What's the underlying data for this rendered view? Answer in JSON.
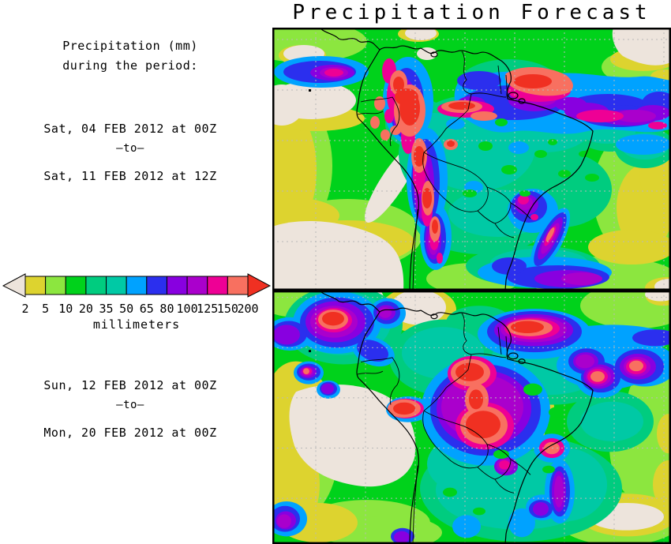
{
  "title": "Precipitation Forecast",
  "sidebar": {
    "header_line1": "Precipitation (mm)",
    "header_line2": "during the period:",
    "period1": {
      "start": "Sat, 04 FEB 2012 at 00Z",
      "separator": "–to–",
      "end": "Sat, 11 FEB 2012 at 12Z"
    },
    "period2": {
      "start": "Sun, 12 FEB 2012 at 00Z",
      "separator": "–to–",
      "end": "Mon, 20 FEB 2012 at 00Z"
    }
  },
  "legend": {
    "values": [
      "2",
      "5",
      "10",
      "20",
      "35",
      "50",
      "65",
      "80",
      "100",
      "125",
      "150",
      "200"
    ],
    "unit_label": "millimeters",
    "palette": [
      "#ede4dc",
      "#ddd32f",
      "#8ce63f",
      "#00d21b",
      "#00cc7f",
      "#00c9a5",
      "#00a2ff",
      "#2b2fee",
      "#8800e0",
      "#aa00cc",
      "#ee0095",
      "#f87060",
      "#f03022"
    ],
    "palette_meaning": "below-2mm, 2-5, 5-10, 10-20, 20-35, 35-50, 50-65, 65-80, 80-100, 100-125, 125-150, 150-200, above-200"
  },
  "map_style": {
    "background_color": "#00d21b",
    "grid_color": "#b9b9b9",
    "coast_color": "#000000",
    "frame_color": "#000000"
  }
}
